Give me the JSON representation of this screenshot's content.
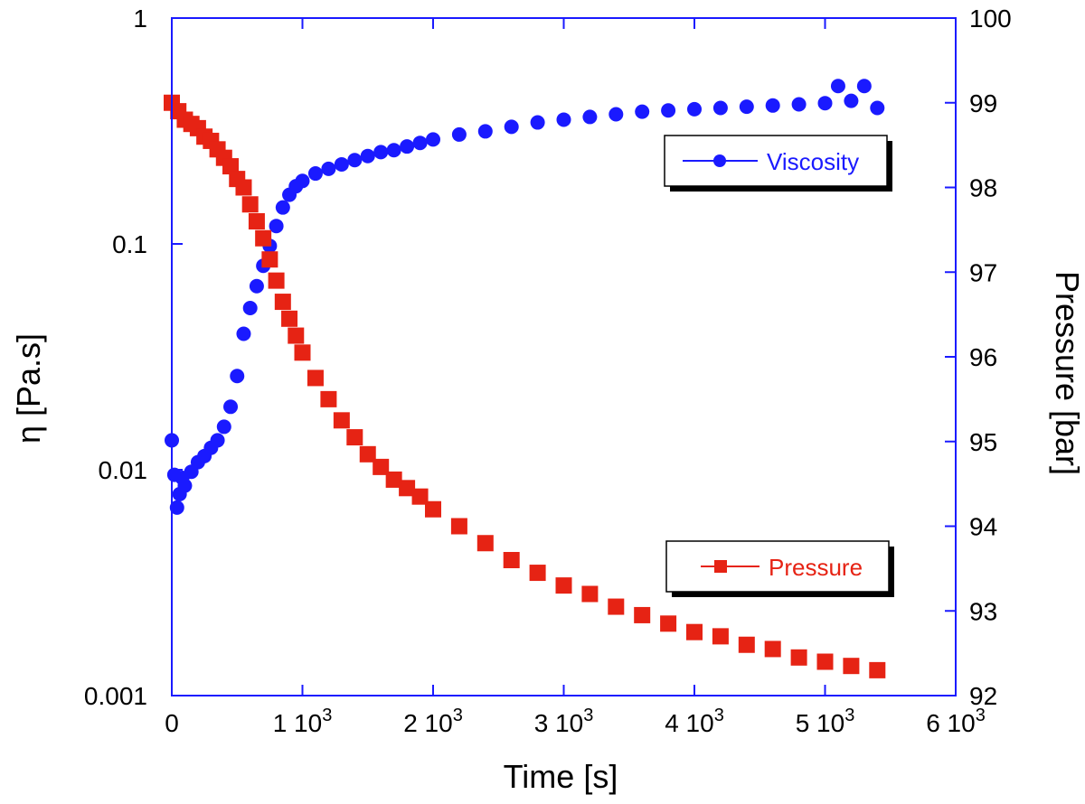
{
  "chart_data": {
    "type": "scatter",
    "xlabel": "Time [s]",
    "ylabel_left": "η [Pa.s]",
    "ylabel_right": "Pressure [bar]",
    "x_range": [
      0,
      6000
    ],
    "x_ticks": [
      {
        "value": 0,
        "label": "0",
        "exp": ""
      },
      {
        "value": 1000,
        "label": "1 10",
        "exp": "3"
      },
      {
        "value": 2000,
        "label": "2 10",
        "exp": "3"
      },
      {
        "value": 3000,
        "label": "3 10",
        "exp": "3"
      },
      {
        "value": 4000,
        "label": "4 10",
        "exp": "3"
      },
      {
        "value": 5000,
        "label": "5 10",
        "exp": "3"
      },
      {
        "value": 6000,
        "label": "6 10",
        "exp": "3"
      }
    ],
    "y_left_scale": "log",
    "y_left_range": [
      0.001,
      1
    ],
    "y_left_ticks": [
      "0.001",
      "0.01",
      "0.1",
      "1"
    ],
    "y_right_range": [
      92,
      100
    ],
    "y_right_ticks": [
      "92",
      "93",
      "94",
      "95",
      "96",
      "97",
      "98",
      "99",
      "100"
    ],
    "grid": false,
    "axis_color": "#1a1aff",
    "series": [
      {
        "name": "Viscosity",
        "axis": "left",
        "color": "#1a1aff",
        "marker": "circle",
        "legend_placement": "upper-right",
        "points": [
          [
            0,
            0.0135
          ],
          [
            20,
            0.0095
          ],
          [
            40,
            0.0068
          ],
          [
            60,
            0.0078
          ],
          [
            80,
            0.0092
          ],
          [
            100,
            0.0085
          ],
          [
            150,
            0.0098
          ],
          [
            200,
            0.0108
          ],
          [
            250,
            0.0115
          ],
          [
            300,
            0.0125
          ],
          [
            350,
            0.0135
          ],
          [
            400,
            0.0155
          ],
          [
            450,
            0.019
          ],
          [
            500,
            0.026
          ],
          [
            550,
            0.04
          ],
          [
            600,
            0.052
          ],
          [
            650,
            0.065
          ],
          [
            700,
            0.08
          ],
          [
            750,
            0.098
          ],
          [
            800,
            0.12
          ],
          [
            850,
            0.145
          ],
          [
            900,
            0.165
          ],
          [
            950,
            0.18
          ],
          [
            1000,
            0.19
          ],
          [
            1100,
            0.205
          ],
          [
            1200,
            0.215
          ],
          [
            1300,
            0.225
          ],
          [
            1400,
            0.235
          ],
          [
            1500,
            0.245
          ],
          [
            1600,
            0.255
          ],
          [
            1700,
            0.26
          ],
          [
            1800,
            0.27
          ],
          [
            1900,
            0.28
          ],
          [
            2000,
            0.29
          ],
          [
            2200,
            0.305
          ],
          [
            2400,
            0.315
          ],
          [
            2600,
            0.33
          ],
          [
            2800,
            0.345
          ],
          [
            3000,
            0.355
          ],
          [
            3200,
            0.365
          ],
          [
            3400,
            0.375
          ],
          [
            3600,
            0.385
          ],
          [
            3800,
            0.39
          ],
          [
            4000,
            0.395
          ],
          [
            4200,
            0.4
          ],
          [
            4400,
            0.405
          ],
          [
            4600,
            0.41
          ],
          [
            4800,
            0.415
          ],
          [
            5000,
            0.42
          ],
          [
            5100,
            0.5
          ],
          [
            5200,
            0.43
          ],
          [
            5300,
            0.5
          ],
          [
            5400,
            0.4
          ]
        ]
      },
      {
        "name": "Pressure",
        "axis": "right",
        "color": "#e62314",
        "marker": "square",
        "legend_placement": "lower-right",
        "points": [
          [
            0,
            99.0
          ],
          [
            50,
            98.9
          ],
          [
            100,
            98.8
          ],
          [
            150,
            98.75
          ],
          [
            200,
            98.7
          ],
          [
            250,
            98.6
          ],
          [
            300,
            98.55
          ],
          [
            350,
            98.45
          ],
          [
            400,
            98.35
          ],
          [
            450,
            98.25
          ],
          [
            500,
            98.1
          ],
          [
            550,
            98.0
          ],
          [
            600,
            97.8
          ],
          [
            650,
            97.6
          ],
          [
            700,
            97.4
          ],
          [
            750,
            97.15
          ],
          [
            800,
            96.9
          ],
          [
            850,
            96.65
          ],
          [
            900,
            96.45
          ],
          [
            950,
            96.25
          ],
          [
            1000,
            96.05
          ],
          [
            1100,
            95.75
          ],
          [
            1200,
            95.5
          ],
          [
            1300,
            95.25
          ],
          [
            1400,
            95.05
          ],
          [
            1500,
            94.85
          ],
          [
            1600,
            94.7
          ],
          [
            1700,
            94.55
          ],
          [
            1800,
            94.45
          ],
          [
            1900,
            94.35
          ],
          [
            2000,
            94.2
          ],
          [
            2200,
            94.0
          ],
          [
            2400,
            93.8
          ],
          [
            2600,
            93.6
          ],
          [
            2800,
            93.45
          ],
          [
            3000,
            93.3
          ],
          [
            3200,
            93.2
          ],
          [
            3400,
            93.05
          ],
          [
            3600,
            92.95
          ],
          [
            3800,
            92.85
          ],
          [
            4000,
            92.75
          ],
          [
            4200,
            92.7
          ],
          [
            4400,
            92.6
          ],
          [
            4600,
            92.55
          ],
          [
            4800,
            92.45
          ],
          [
            5000,
            92.4
          ],
          [
            5200,
            92.35
          ],
          [
            5400,
            92.3
          ]
        ]
      }
    ]
  }
}
